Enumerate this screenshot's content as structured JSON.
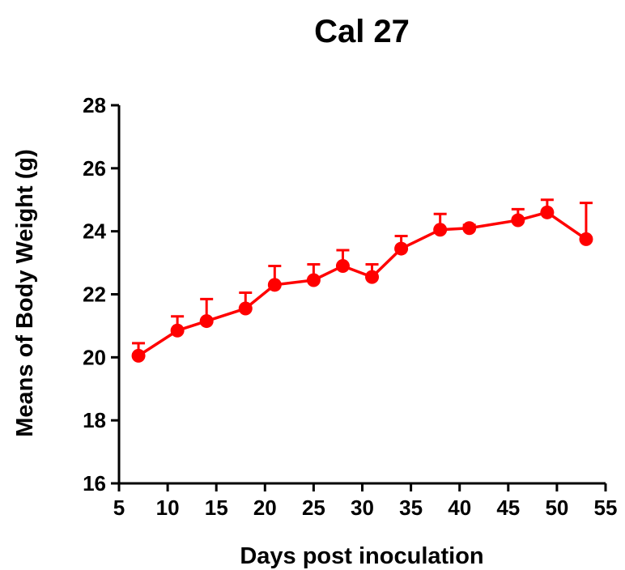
{
  "chart_data": {
    "type": "line",
    "title": "Cal 27",
    "xlabel": "Days post inoculation",
    "ylabel": "Means of Body Weight (g)",
    "xlim": [
      5,
      55
    ],
    "ylim": [
      16,
      28
    ],
    "xticks": [
      5,
      10,
      15,
      20,
      25,
      30,
      35,
      40,
      45,
      50,
      55
    ],
    "yticks": [
      16,
      18,
      20,
      22,
      24,
      26,
      28
    ],
    "color": "#ff0000",
    "series": [
      {
        "x": [
          7,
          11,
          14,
          18,
          21,
          25,
          28,
          31,
          34,
          38,
          41,
          46,
          49,
          53
        ],
        "y": [
          20.05,
          20.85,
          21.15,
          21.55,
          22.3,
          22.45,
          22.9,
          22.55,
          23.45,
          24.05,
          24.1,
          24.35,
          24.6,
          23.75
        ],
        "error_upper": [
          0.4,
          0.45,
          0.7,
          0.5,
          0.6,
          0.5,
          0.5,
          0.4,
          0.4,
          0.5,
          0.1,
          0.35,
          0.4,
          1.15
        ]
      }
    ]
  }
}
